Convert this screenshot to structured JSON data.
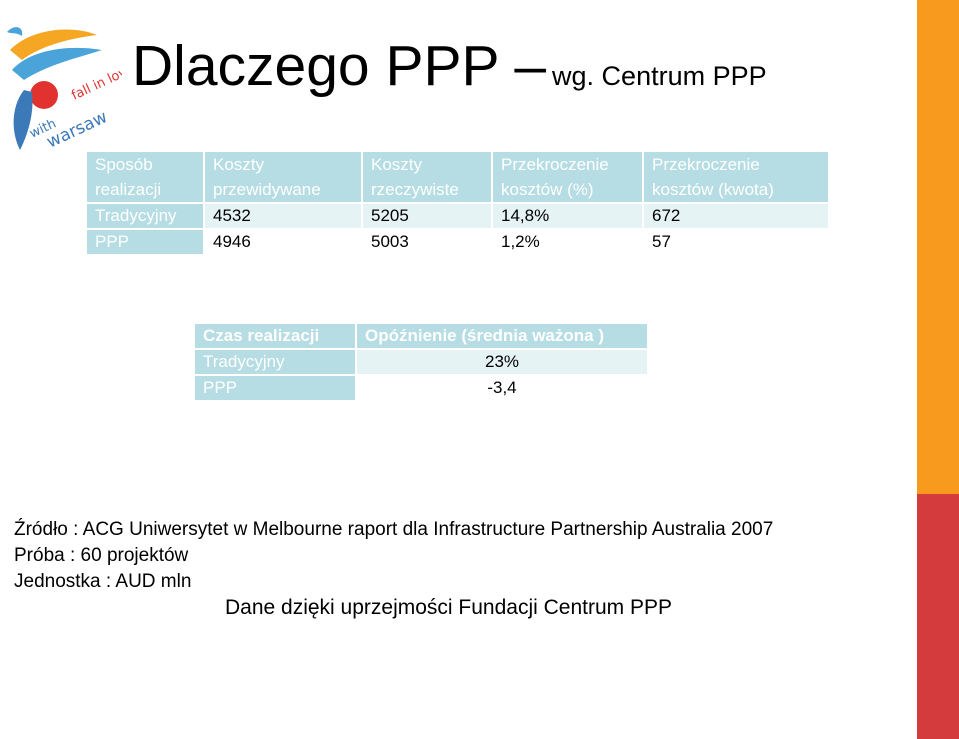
{
  "title": "Dlaczego PPP –",
  "title_sub": "wg. Centrum PPP",
  "logo": {
    "text_line1": "fall in love",
    "text_line2": "with",
    "text_line3": "warsaw"
  },
  "table1": {
    "headers": [
      [
        "Sposób",
        "realizacji"
      ],
      [
        "Koszty",
        "przewidywane"
      ],
      [
        "Koszty",
        "rzeczywiste"
      ],
      [
        "Przekroczenie",
        "kosztów (%)"
      ],
      [
        "Przekroczenie",
        "kosztów (kwota)"
      ]
    ],
    "rows": [
      [
        "Tradycyjny",
        "4532",
        "5205",
        "14,8%",
        "672"
      ],
      [
        "PPP",
        "4946",
        "5003",
        "1,2%",
        "57"
      ]
    ]
  },
  "table2": {
    "headers": [
      "Czas realizacji",
      "Opóźnienie (średnia ważona )"
    ],
    "rows": [
      [
        "Tradycyjny",
        "23%"
      ],
      [
        "PPP",
        "-3,4"
      ]
    ]
  },
  "notes": [
    "Źródło : ACG Uniwersytet w Melbourne raport dla Infrastructure Partnership Australia 2007",
    "Próba : 60 projektów",
    "Jednostka : AUD mln"
  ],
  "thanks": "Dane dzięki uprzejmości Fundacji Centrum PPP",
  "colors": {
    "accent_orange": "#f79a1e",
    "accent_red": "#d33b3c",
    "table_header": "#b5dde3",
    "table_row_alt": "#e6f3f5"
  }
}
